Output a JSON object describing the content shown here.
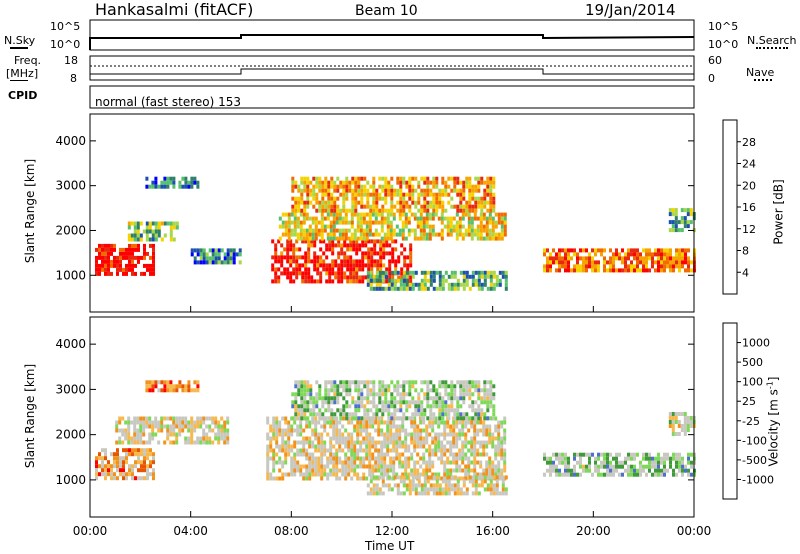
{
  "header": {
    "station": "Hankasalmi (fitACF)",
    "beam": "Beam 10",
    "date": "19/Jan/2014"
  },
  "top_panels": {
    "nsky_label": "N.Sky",
    "nsearch_label": "N.Search",
    "noise_ticks": [
      "10^5",
      "10^0"
    ],
    "freq_label": "Freq.",
    "freq_unit": "[MHz]",
    "freq_ticks": [
      "18",
      "8"
    ],
    "nave_label": "Nave",
    "nave_ticks": [
      "60",
      "0"
    ],
    "cpid_label": "CPID",
    "cpid_text": "normal (fast stereo) 153"
  },
  "chart_data": [
    {
      "type": "heatmap",
      "name": "power",
      "ylabel": "Slant Range [km]",
      "ylim": [
        180,
        4600
      ],
      "yticks": [
        "1000",
        "2000",
        "3000",
        "4000"
      ],
      "colorbar_label": "Power [dB]",
      "colorbar_ticks": [
        "28",
        "24",
        "20",
        "16",
        "12",
        "8",
        "4"
      ],
      "colors": [
        "#0000ff",
        "#1b4fb0",
        "#2f7f6a",
        "#56c06c",
        "#a8d84a",
        "#f6d300",
        "#f7a400",
        "#f26b00",
        "#e8280f",
        "#ff0000"
      ],
      "regions": [
        {
          "t0": 0.2,
          "t1": 2.5,
          "r0": 1000,
          "r1": 1700,
          "level": 0.95
        },
        {
          "t0": 1.5,
          "t1": 3.5,
          "r0": 1800,
          "r1": 2200,
          "level": 0.4
        },
        {
          "t0": 2.2,
          "t1": 4.3,
          "r0": 2950,
          "r1": 3200,
          "level": 0.2
        },
        {
          "t0": 4.0,
          "t1": 6.0,
          "r0": 1300,
          "r1": 1600,
          "level": 0.25
        },
        {
          "t0": 7.2,
          "t1": 12.8,
          "r0": 900,
          "r1": 1800,
          "level": 0.9
        },
        {
          "t0": 7.5,
          "t1": 16.5,
          "r0": 1800,
          "r1": 2400,
          "level": 0.55
        },
        {
          "t0": 8.0,
          "t1": 16.0,
          "r0": 2400,
          "r1": 3200,
          "level": 0.65
        },
        {
          "t0": 11.0,
          "t1": 16.5,
          "r0": 700,
          "r1": 1100,
          "level": 0.35
        },
        {
          "t0": 18.0,
          "t1": 24.0,
          "r0": 1150,
          "r1": 1600,
          "level": 0.75
        },
        {
          "t0": 23.0,
          "t1": 24.0,
          "r0": 2000,
          "r1": 2500,
          "level": 0.3
        }
      ]
    },
    {
      "type": "heatmap",
      "name": "velocity",
      "ylabel": "Slant Range [km]",
      "ylim": [
        180,
        4600
      ],
      "yticks": [
        "1000",
        "2000",
        "3000",
        "4000"
      ],
      "colorbar_label": "Velocity [m s",
      "colorbar_label_sup": "-1",
      "colorbar_label_end": "]",
      "colorbar_ticks": [
        "1000",
        "500",
        "100",
        "25",
        "-25",
        "-100",
        "-500",
        "-1000"
      ],
      "colors": [
        "#ff0000",
        "#e85500",
        "#f2921a",
        "#f7b84d",
        "#c8c8c0",
        "#c8c8c0",
        "#7ed957",
        "#3f9a3a",
        "#4f6fd0",
        "#1d2fa8"
      ],
      "regions": [
        {
          "t0": 0.2,
          "t1": 2.5,
          "r0": 1000,
          "r1": 1700,
          "level": 0.3
        },
        {
          "t0": 1.0,
          "t1": 5.5,
          "r0": 1800,
          "r1": 2400,
          "level": 0.45
        },
        {
          "t0": 2.2,
          "t1": 4.3,
          "r0": 2950,
          "r1": 3200,
          "level": 0.2
        },
        {
          "t0": 7.0,
          "t1": 16.5,
          "r0": 1000,
          "r1": 2400,
          "level": 0.45
        },
        {
          "t0": 8.0,
          "t1": 16.0,
          "r0": 2400,
          "r1": 3200,
          "level": 0.6
        },
        {
          "t0": 11.0,
          "t1": 16.5,
          "r0": 700,
          "r1": 1100,
          "level": 0.45
        },
        {
          "t0": 18.0,
          "t1": 24.0,
          "r0": 1150,
          "r1": 1600,
          "level": 0.62
        },
        {
          "t0": 23.0,
          "t1": 24.0,
          "r0": 2000,
          "r1": 2500,
          "level": 0.5
        }
      ]
    }
  ],
  "xaxis": {
    "label": "Time UT",
    "xlim": [
      0,
      24
    ],
    "ticks": [
      "00:00",
      "04:00",
      "08:00",
      "12:00",
      "16:00",
      "20:00",
      "00:00"
    ]
  }
}
